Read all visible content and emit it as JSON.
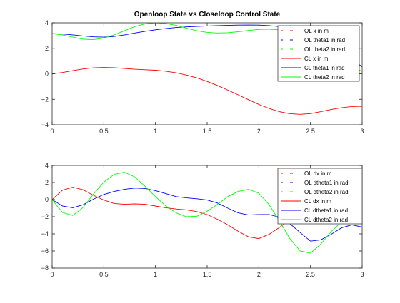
{
  "chart_data": [
    {
      "type": "line",
      "title": "Openloop State vs Closeloop Control State",
      "xlim": [
        0,
        3
      ],
      "ylim": [
        -4,
        4
      ],
      "xticks": [
        0,
        0.5,
        1,
        1.5,
        2,
        2.5,
        3
      ],
      "xtick_labels": [
        "0",
        "0.5",
        "1",
        "1.5",
        "2",
        "2.5",
        "3"
      ],
      "yticks": [
        -4,
        -2,
        0,
        2,
        4
      ],
      "ytick_labels": [
        "−4",
        "−2",
        "0",
        "2",
        "4"
      ],
      "grid": false,
      "legend_position": "top-right",
      "series": [
        {
          "name": "OL x in m",
          "color": "#ff0000",
          "style": "dashed",
          "x": [
            0,
            0.5,
            1,
            1.5,
            2,
            2.5,
            3
          ],
          "y": [
            0,
            0.5,
            0.3,
            -0.5,
            -2.2,
            -3.1,
            -2.5
          ]
        },
        {
          "name": "OL theta1 in rad",
          "color": "#0000ff",
          "style": "dashed",
          "x": [
            0,
            0.5,
            1,
            1.5,
            2,
            2.5,
            3
          ],
          "y": [
            3.1,
            2.9,
            3.5,
            3.7,
            3.8,
            3.2,
            0.6
          ]
        },
        {
          "name": "OL theta2 in rad",
          "color": "#00ff00",
          "style": "dashed",
          "x": [
            0,
            0.5,
            1,
            1.5,
            2,
            2.5,
            3
          ],
          "y": [
            3.1,
            2.9,
            4.0,
            3.2,
            3.5,
            3.0,
            0.2
          ]
        },
        {
          "name": "CL x in m",
          "color": "#ff0000",
          "style": "solid",
          "x": [
            0,
            0.1,
            0.2,
            0.3,
            0.4,
            0.5,
            0.6,
            0.7,
            0.8,
            0.9,
            1.0,
            1.1,
            1.2,
            1.3,
            1.4,
            1.5,
            1.6,
            1.7,
            1.8,
            1.9,
            2.0,
            2.1,
            2.2,
            2.3,
            2.4,
            2.5,
            2.6,
            2.7,
            2.8,
            2.9,
            3.0
          ],
          "y": [
            0,
            0.1,
            0.25,
            0.38,
            0.47,
            0.5,
            0.48,
            0.42,
            0.36,
            0.32,
            0.28,
            0.2,
            0.08,
            -0.1,
            -0.32,
            -0.6,
            -0.92,
            -1.28,
            -1.65,
            -2.03,
            -2.4,
            -2.72,
            -2.97,
            -3.13,
            -3.18,
            -3.12,
            -2.97,
            -2.8,
            -2.66,
            -2.57,
            -2.55
          ]
        },
        {
          "name": "CL theta1 in rad",
          "color": "#0000ff",
          "style": "solid",
          "x": [
            0,
            0.1,
            0.2,
            0.3,
            0.4,
            0.5,
            0.6,
            0.7,
            0.8,
            0.9,
            1.0,
            1.1,
            1.2,
            1.3,
            1.4,
            1.5,
            1.6,
            1.7,
            1.8,
            1.9,
            2.0,
            2.1,
            2.2,
            2.3,
            2.4,
            2.5,
            2.6,
            2.7,
            2.8,
            2.9,
            3.0
          ],
          "y": [
            3.15,
            3.12,
            3.05,
            2.97,
            2.9,
            2.88,
            2.93,
            3.05,
            3.2,
            3.33,
            3.45,
            3.55,
            3.63,
            3.68,
            3.72,
            3.75,
            3.78,
            3.8,
            3.82,
            3.83,
            3.82,
            3.78,
            3.7,
            3.58,
            3.42,
            3.2,
            2.9,
            2.45,
            1.85,
            1.15,
            0.55
          ]
        },
        {
          "name": "CL theta2 in rad",
          "color": "#00ff00",
          "style": "solid",
          "x": [
            0,
            0.1,
            0.2,
            0.3,
            0.4,
            0.5,
            0.6,
            0.7,
            0.8,
            0.9,
            1.0,
            1.1,
            1.2,
            1.3,
            1.4,
            1.5,
            1.6,
            1.7,
            1.8,
            1.9,
            2.0,
            2.1,
            2.2,
            2.3,
            2.4,
            2.5,
            2.6,
            2.7,
            2.8,
            2.9,
            3.0
          ],
          "y": [
            3.15,
            3.05,
            2.88,
            2.72,
            2.68,
            2.8,
            3.05,
            3.38,
            3.7,
            3.92,
            4.0,
            3.95,
            3.8,
            3.58,
            3.38,
            3.25,
            3.2,
            3.22,
            3.3,
            3.4,
            3.48,
            3.5,
            3.45,
            3.3,
            3.05,
            2.7,
            2.2,
            1.6,
            1.0,
            0.5,
            0.2
          ]
        }
      ]
    },
    {
      "type": "line",
      "title": "",
      "xlim": [
        0,
        3
      ],
      "ylim": [
        -8,
        4
      ],
      "xticks": [
        0,
        0.5,
        1,
        1.5,
        2,
        2.5,
        3
      ],
      "xtick_labels": [
        "0",
        "0.5",
        "1",
        "1.5",
        "2",
        "2.5",
        "3"
      ],
      "yticks": [
        -8,
        -6,
        -4,
        -2,
        0,
        2,
        4
      ],
      "ytick_labels": [
        "−8",
        "−6",
        "−4",
        "−2",
        "0",
        "2",
        "4"
      ],
      "grid": false,
      "legend_position": "top-right",
      "series": [
        {
          "name": "OL dx in m",
          "color": "#ff0000",
          "style": "dashed",
          "x": [
            0,
            0.5,
            1,
            1.5,
            2,
            2.5,
            3
          ],
          "y": [
            0,
            0.5,
            -0.5,
            -1.8,
            -4.4,
            -2.5,
            -1.0
          ]
        },
        {
          "name": "OL dtheta1 in rad",
          "color": "#0000ff",
          "style": "dashed",
          "x": [
            0,
            0.5,
            1,
            1.5,
            2,
            2.5,
            3
          ],
          "y": [
            0,
            -0.4,
            1.2,
            -0.2,
            -1.4,
            -4.8,
            -3.0
          ]
        },
        {
          "name": "OL dtheta2 in rad",
          "color": "#00ff00",
          "style": "dashed",
          "x": [
            0,
            0.5,
            1,
            1.5,
            2,
            2.5,
            3
          ],
          "y": [
            0,
            0.8,
            2.0,
            -1.8,
            1.0,
            -6.0,
            -3.0
          ]
        },
        {
          "name": "CL dx in m",
          "color": "#ff0000",
          "style": "solid",
          "x": [
            0,
            0.1,
            0.2,
            0.3,
            0.4,
            0.5,
            0.6,
            0.7,
            0.8,
            0.9,
            1.0,
            1.1,
            1.2,
            1.3,
            1.4,
            1.5,
            1.6,
            1.7,
            1.8,
            1.9,
            2.0,
            2.1,
            2.2,
            2.3,
            2.4,
            2.5,
            2.6,
            2.7,
            2.8,
            2.9,
            3.0
          ],
          "y": [
            0,
            1.1,
            1.45,
            1.15,
            0.5,
            -0.05,
            -0.45,
            -0.55,
            -0.5,
            -0.55,
            -0.75,
            -0.95,
            -1.1,
            -1.2,
            -1.4,
            -1.75,
            -2.3,
            -2.95,
            -3.7,
            -4.35,
            -4.55,
            -4.05,
            -3.25,
            -2.35,
            -1.45,
            -0.7,
            -0.3,
            -0.25,
            -0.45,
            -0.45,
            -0.1
          ]
        },
        {
          "name": "CL dtheta1 in rad",
          "color": "#0000ff",
          "style": "solid",
          "x": [
            0,
            0.1,
            0.2,
            0.3,
            0.4,
            0.5,
            0.6,
            0.7,
            0.8,
            0.9,
            1.0,
            1.1,
            1.2,
            1.3,
            1.4,
            1.5,
            1.6,
            1.7,
            1.8,
            1.9,
            2.0,
            2.1,
            2.2,
            2.3,
            2.4,
            2.5,
            2.6,
            2.7,
            2.8,
            2.9,
            3.0
          ],
          "y": [
            0,
            -0.75,
            -0.95,
            -0.6,
            0.05,
            0.6,
            0.95,
            1.2,
            1.35,
            1.3,
            1.05,
            0.7,
            0.35,
            0.2,
            0.1,
            -0.05,
            -0.4,
            -1.0,
            -1.55,
            -1.8,
            -1.75,
            -1.75,
            -2.05,
            -2.8,
            -3.85,
            -4.85,
            -4.7,
            -4.05,
            -3.3,
            -2.95,
            -3.2
          ]
        },
        {
          "name": "CL dtheta2 in rad",
          "color": "#00ff00",
          "style": "solid",
          "x": [
            0,
            0.1,
            0.2,
            0.3,
            0.4,
            0.5,
            0.6,
            0.7,
            0.8,
            0.9,
            1.0,
            1.1,
            1.2,
            1.3,
            1.4,
            1.5,
            1.6,
            1.7,
            1.8,
            1.9,
            2.0,
            2.1,
            2.2,
            2.3,
            2.4,
            2.5,
            2.6,
            2.7,
            2.8,
            2.9,
            3.0
          ],
          "y": [
            0,
            -1.5,
            -1.85,
            -0.9,
            0.65,
            2.05,
            2.95,
            3.2,
            2.65,
            1.55,
            0.35,
            -0.75,
            -1.55,
            -2.0,
            -1.95,
            -1.35,
            -0.55,
            0.35,
            0.95,
            1.2,
            0.75,
            -0.6,
            -2.5,
            -4.55,
            -6.0,
            -6.25,
            -5.2,
            -3.75,
            -2.6,
            -1.9,
            -1.3
          ]
        }
      ]
    }
  ]
}
